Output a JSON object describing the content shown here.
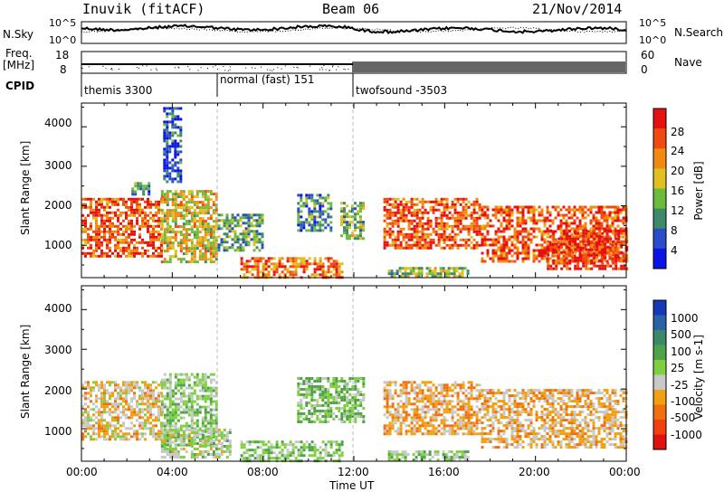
{
  "header": {
    "station": "Inuvik (fitACF)",
    "beam": "Beam 06",
    "date": "21/Nov/2014"
  },
  "noise_panel": {
    "left_label": "N.Sky",
    "right_label": "N.Search",
    "left_ticks": [
      "10^5",
      "10^0"
    ],
    "right_ticks": [
      "10^5",
      "10^0"
    ]
  },
  "freq_panel": {
    "left_label_1": "Freq.",
    "left_label_2": "[MHz]",
    "right_label": "Nave",
    "left_ticks": [
      "18",
      "8"
    ],
    "right_ticks": [
      "60",
      "0"
    ]
  },
  "cpid": {
    "label": "CPID",
    "segments": [
      {
        "name": "themis 3300"
      },
      {
        "name": "normal (fast) 151"
      },
      {
        "name": "twofsound -3503"
      }
    ]
  },
  "axes": {
    "ylabel": "Slant Range [km]",
    "xlabel": "Time UT",
    "x_ticks": [
      "00:00",
      "04:00",
      "08:00",
      "12:00",
      "16:00",
      "20:00",
      "00:00"
    ],
    "y_ticks": [
      "1000",
      "2000",
      "3000",
      "4000"
    ]
  },
  "power_bar": {
    "label": "Power [dB]",
    "ticks": [
      "4",
      "8",
      "12",
      "16",
      "20",
      "24",
      "28"
    ],
    "colors": [
      "#0a14e6",
      "#2a4cc8",
      "#3d8a6a",
      "#6dbb3c",
      "#e0c020",
      "#f08a10",
      "#f04a10",
      "#e61010"
    ]
  },
  "velocity_bar": {
    "label": "Velocity [m s-1]",
    "ticks": [
      "1000",
      "500",
      "100",
      "25",
      "-25",
      "-100",
      "-500",
      "-1000"
    ],
    "colors": [
      "#1438b8",
      "#2a62a8",
      "#3a8a6a",
      "#4ea24a",
      "#7ed040",
      "#c8c8c8",
      "#f0a010",
      "#f07010",
      "#f04010",
      "#e01010"
    ]
  },
  "chart_data": [
    {
      "type": "heatmap",
      "name": "power",
      "xlabel": "Time UT",
      "ylabel": "Slant Range [km]",
      "xlim_hours": [
        0,
        24
      ],
      "ylim_km": [
        180,
        4600
      ],
      "cbar_label": "Power [dB]",
      "cbar_range": [
        0,
        32
      ],
      "echo_regions": [
        {
          "t": [
            0.0,
            3.5
          ],
          "r": [
            700,
            2200
          ],
          "v": 26
        },
        {
          "t": [
            2.2,
            3.0
          ],
          "r": [
            2300,
            2600
          ],
          "v": 10
        },
        {
          "t": [
            3.5,
            6.0
          ],
          "r": [
            600,
            2400
          ],
          "v": 18
        },
        {
          "t": [
            3.6,
            4.4
          ],
          "r": [
            2600,
            4500
          ],
          "v": 6
        },
        {
          "t": [
            6.0,
            8.0
          ],
          "r": [
            900,
            1800
          ],
          "v": 12
        },
        {
          "t": [
            7.0,
            11.5
          ],
          "r": [
            200,
            700
          ],
          "v": 24
        },
        {
          "t": [
            9.5,
            11.0
          ],
          "r": [
            1400,
            2300
          ],
          "v": 10
        },
        {
          "t": [
            11.4,
            12.4
          ],
          "r": [
            1200,
            2100
          ],
          "v": 14
        },
        {
          "t": [
            13.3,
            17.6
          ],
          "r": [
            900,
            2200
          ],
          "v": 26
        },
        {
          "t": [
            13.5,
            17.0
          ],
          "r": [
            200,
            450
          ],
          "v": 14
        },
        {
          "t": [
            17.6,
            24.0
          ],
          "r": [
            600,
            2000
          ],
          "v": 26
        },
        {
          "t": [
            20.5,
            24.0
          ],
          "r": [
            400,
            1400
          ],
          "v": 28
        }
      ]
    },
    {
      "type": "heatmap",
      "name": "velocity",
      "xlabel": "Time UT",
      "ylabel": "Slant Range [km]",
      "xlim_hours": [
        0,
        24
      ],
      "ylim_km": [
        180,
        4600
      ],
      "cbar_label": "Velocity [m s-1]",
      "cbar_range": [
        -1000,
        1000
      ],
      "echo_regions": [
        {
          "t": [
            0.0,
            3.5
          ],
          "r": [
            700,
            2200
          ],
          "v": -200
        },
        {
          "t": [
            3.5,
            6.0
          ],
          "r": [
            600,
            2400
          ],
          "v": 120
        },
        {
          "t": [
            3.5,
            6.5
          ],
          "r": [
            300,
            1000
          ],
          "v": 0
        },
        {
          "t": [
            7.0,
            11.5
          ],
          "r": [
            200,
            700
          ],
          "v": 100
        },
        {
          "t": [
            9.5,
            12.4
          ],
          "r": [
            1200,
            2300
          ],
          "v": 150
        },
        {
          "t": [
            13.3,
            17.6
          ],
          "r": [
            900,
            2200
          ],
          "v": -300
        },
        {
          "t": [
            13.5,
            17.0
          ],
          "r": [
            200,
            450
          ],
          "v": 80
        },
        {
          "t": [
            17.6,
            24.0
          ],
          "r": [
            500,
            2000
          ],
          "v": -250
        }
      ]
    }
  ]
}
